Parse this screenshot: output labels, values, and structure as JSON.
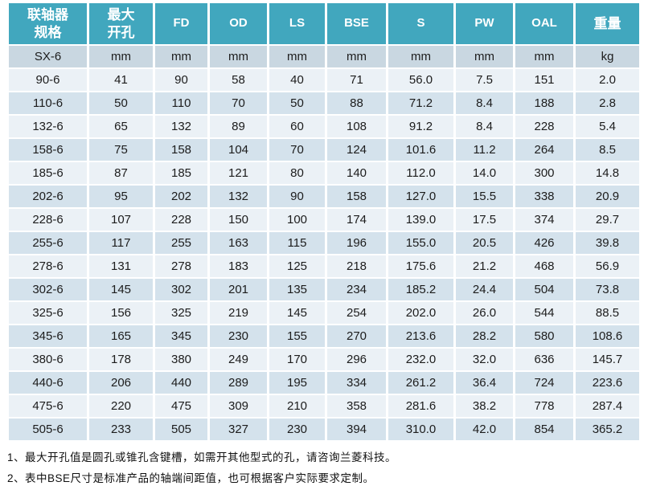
{
  "colors": {
    "header_bg": "#41a7be",
    "header_text": "#ffffff",
    "unit_row_bg": "#c9d7e1",
    "row_light_bg": "#ebf1f6",
    "row_dark_bg": "#d4e2ec",
    "cell_text": "#1c1c1c"
  },
  "table": {
    "headers": [
      {
        "id": "spec",
        "lines": [
          "联轴器",
          "规格"
        ],
        "cjk": true
      },
      {
        "id": "max-bore",
        "lines": [
          "最大",
          "开孔"
        ],
        "cjk": true
      },
      {
        "id": "fd",
        "lines": [
          "FD"
        ]
      },
      {
        "id": "od",
        "lines": [
          "OD"
        ]
      },
      {
        "id": "ls",
        "lines": [
          "LS"
        ]
      },
      {
        "id": "bse",
        "lines": [
          "BSE"
        ]
      },
      {
        "id": "s",
        "lines": [
          "S"
        ]
      },
      {
        "id": "pw",
        "lines": [
          "PW"
        ]
      },
      {
        "id": "oal",
        "lines": [
          "OAL"
        ]
      },
      {
        "id": "weight",
        "lines": [
          "重量"
        ],
        "cjk": true
      }
    ],
    "unit_row": [
      "SX-6",
      "mm",
      "mm",
      "mm",
      "mm",
      "mm",
      "mm",
      "mm",
      "mm",
      "kg"
    ],
    "rows": [
      [
        "90-6",
        "41",
        "90",
        "58",
        "40",
        "71",
        "56.0",
        "7.5",
        "151",
        "2.0"
      ],
      [
        "110-6",
        "50",
        "110",
        "70",
        "50",
        "88",
        "71.2",
        "8.4",
        "188",
        "2.8"
      ],
      [
        "132-6",
        "65",
        "132",
        "89",
        "60",
        "108",
        "91.2",
        "8.4",
        "228",
        "5.4"
      ],
      [
        "158-6",
        "75",
        "158",
        "104",
        "70",
        "124",
        "101.6",
        "11.2",
        "264",
        "8.5"
      ],
      [
        "185-6",
        "87",
        "185",
        "121",
        "80",
        "140",
        "112.0",
        "14.0",
        "300",
        "14.8"
      ],
      [
        "202-6",
        "95",
        "202",
        "132",
        "90",
        "158",
        "127.0",
        "15.5",
        "338",
        "20.9"
      ],
      [
        "228-6",
        "107",
        "228",
        "150",
        "100",
        "174",
        "139.0",
        "17.5",
        "374",
        "29.7"
      ],
      [
        "255-6",
        "117",
        "255",
        "163",
        "115",
        "196",
        "155.0",
        "20.5",
        "426",
        "39.8"
      ],
      [
        "278-6",
        "131",
        "278",
        "183",
        "125",
        "218",
        "175.6",
        "21.2",
        "468",
        "56.9"
      ],
      [
        "302-6",
        "145",
        "302",
        "201",
        "135",
        "234",
        "185.2",
        "24.4",
        "504",
        "73.8"
      ],
      [
        "325-6",
        "156",
        "325",
        "219",
        "145",
        "254",
        "202.0",
        "26.0",
        "544",
        "88.5"
      ],
      [
        "345-6",
        "165",
        "345",
        "230",
        "155",
        "270",
        "213.6",
        "28.2",
        "580",
        "108.6"
      ],
      [
        "380-6",
        "178",
        "380",
        "249",
        "170",
        "296",
        "232.0",
        "32.0",
        "636",
        "145.7"
      ],
      [
        "440-6",
        "206",
        "440",
        "289",
        "195",
        "334",
        "261.2",
        "36.4",
        "724",
        "223.6"
      ],
      [
        "475-6",
        "220",
        "475",
        "309",
        "210",
        "358",
        "281.6",
        "38.2",
        "778",
        "287.4"
      ],
      [
        "505-6",
        "233",
        "505",
        "327",
        "230",
        "394",
        "310.0",
        "42.0",
        "854",
        "365.2"
      ]
    ]
  },
  "notes": [
    "1、最大开孔值是圆孔或锥孔含键槽，如需开其他型式的孔，请咨询兰菱科技。",
    "2、表中BSE尺寸是标准产品的轴端间距值，也可根据客户实际要求定制。"
  ]
}
